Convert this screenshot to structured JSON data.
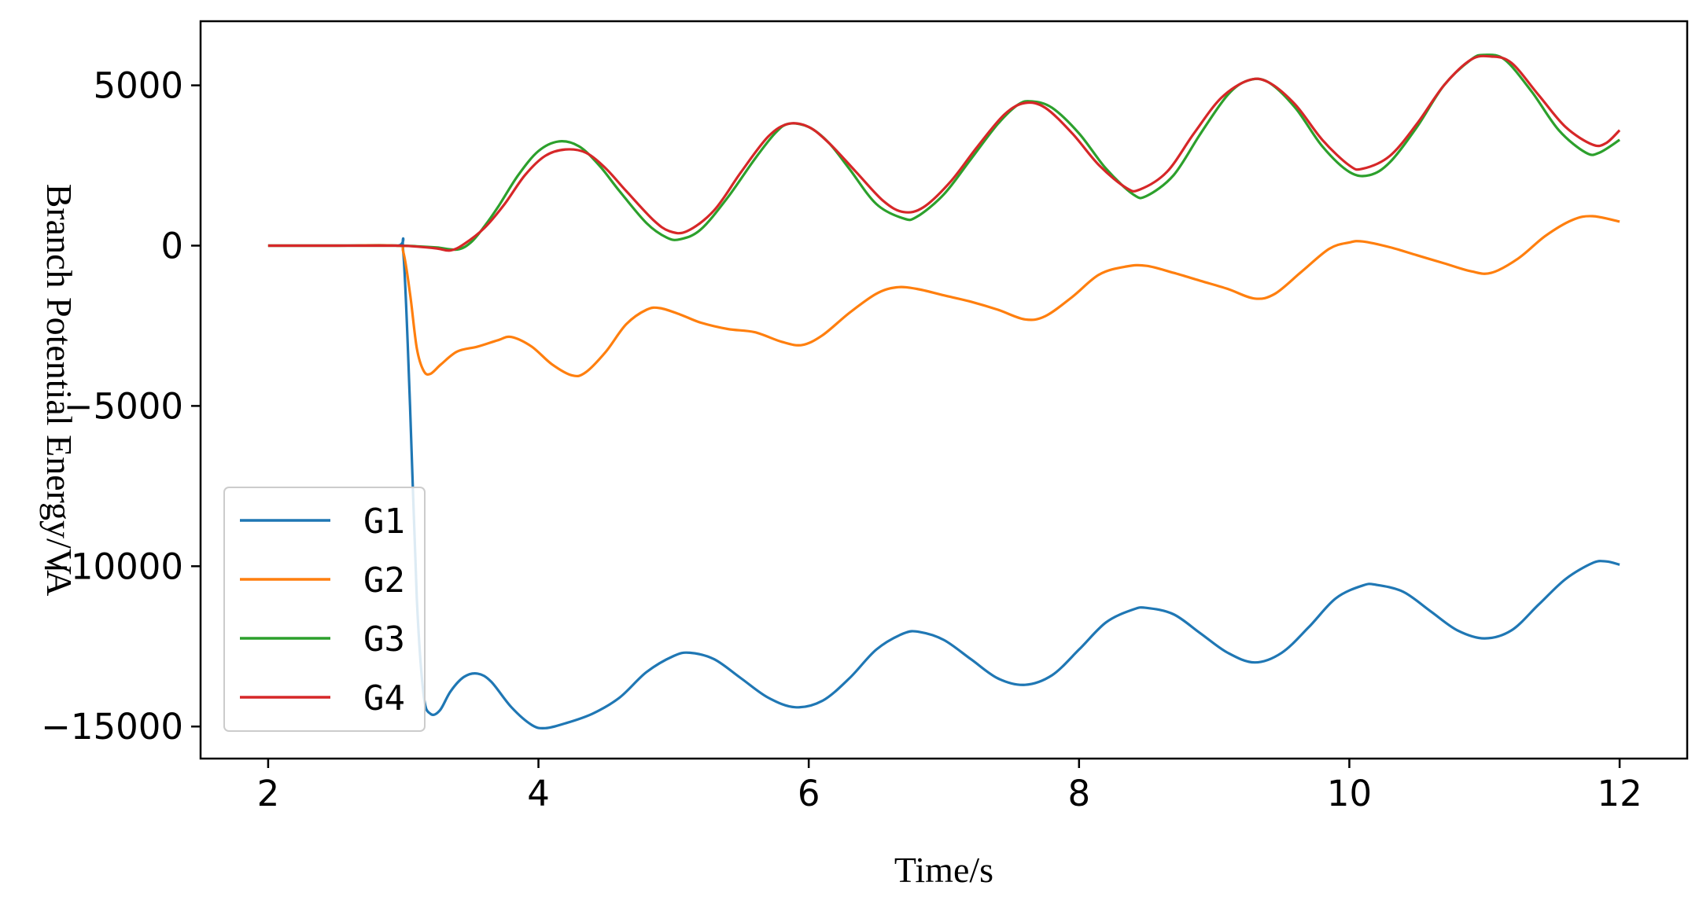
{
  "chart_data": {
    "type": "line",
    "title": "",
    "xlabel": "Time/s",
    "ylabel": "Branch Potential Energy/VA",
    "xlim": [
      1.5,
      12.5
    ],
    "ylim": [
      -16000,
      7000
    ],
    "xticks": [
      2,
      4,
      6,
      8,
      10,
      12
    ],
    "yticks": [
      5000,
      0,
      -5000,
      -10000,
      -15000
    ],
    "xtick_labels": [
      "2",
      "4",
      "6",
      "8",
      "10",
      "12"
    ],
    "ytick_labels": [
      "5000",
      "0",
      "−5000",
      "−10000",
      "−15000"
    ],
    "grid": false,
    "legend_position": "lower-left",
    "series": [
      {
        "name": "G1",
        "color": "#1f77b4",
        "points": [
          [
            2,
            0
          ],
          [
            2.5,
            0
          ],
          [
            2.95,
            0
          ],
          [
            3.0,
            -200
          ],
          [
            3.05,
            -5000
          ],
          [
            3.1,
            -11000
          ],
          [
            3.15,
            -14000
          ],
          [
            3.2,
            -14600
          ],
          [
            3.27,
            -14500
          ],
          [
            3.35,
            -13900
          ],
          [
            3.45,
            -13450
          ],
          [
            3.55,
            -13350
          ],
          [
            3.65,
            -13600
          ],
          [
            3.8,
            -14400
          ],
          [
            3.95,
            -14950
          ],
          [
            4.05,
            -15050
          ],
          [
            4.2,
            -14900
          ],
          [
            4.4,
            -14600
          ],
          [
            4.6,
            -14100
          ],
          [
            4.8,
            -13300
          ],
          [
            5.0,
            -12800
          ],
          [
            5.12,
            -12700
          ],
          [
            5.3,
            -12900
          ],
          [
            5.5,
            -13500
          ],
          [
            5.7,
            -14100
          ],
          [
            5.9,
            -14400
          ],
          [
            6.1,
            -14200
          ],
          [
            6.3,
            -13500
          ],
          [
            6.5,
            -12600
          ],
          [
            6.7,
            -12100
          ],
          [
            6.82,
            -12050
          ],
          [
            7.0,
            -12300
          ],
          [
            7.2,
            -12900
          ],
          [
            7.4,
            -13500
          ],
          [
            7.6,
            -13700
          ],
          [
            7.8,
            -13400
          ],
          [
            8.0,
            -12600
          ],
          [
            8.2,
            -11750
          ],
          [
            8.4,
            -11350
          ],
          [
            8.5,
            -11300
          ],
          [
            8.7,
            -11500
          ],
          [
            8.9,
            -12100
          ],
          [
            9.1,
            -12700
          ],
          [
            9.3,
            -13000
          ],
          [
            9.5,
            -12700
          ],
          [
            9.7,
            -11900
          ],
          [
            9.9,
            -11000
          ],
          [
            10.1,
            -10600
          ],
          [
            10.2,
            -10580
          ],
          [
            10.4,
            -10800
          ],
          [
            10.6,
            -11400
          ],
          [
            10.8,
            -12000
          ],
          [
            11.0,
            -12250
          ],
          [
            11.2,
            -12000
          ],
          [
            11.4,
            -11200
          ],
          [
            11.6,
            -10400
          ],
          [
            11.8,
            -9900
          ],
          [
            11.9,
            -9850
          ],
          [
            12.0,
            -9950
          ]
        ]
      },
      {
        "name": "G2",
        "color": "#ff7f0e",
        "points": [
          [
            2,
            0
          ],
          [
            2.5,
            0
          ],
          [
            2.95,
            0
          ],
          [
            3.0,
            -200
          ],
          [
            3.05,
            -1500
          ],
          [
            3.1,
            -3200
          ],
          [
            3.15,
            -3900
          ],
          [
            3.2,
            -4000
          ],
          [
            3.28,
            -3700
          ],
          [
            3.4,
            -3300
          ],
          [
            3.55,
            -3150
          ],
          [
            3.7,
            -2950
          ],
          [
            3.8,
            -2850
          ],
          [
            3.95,
            -3150
          ],
          [
            4.1,
            -3700
          ],
          [
            4.25,
            -4050
          ],
          [
            4.35,
            -3950
          ],
          [
            4.5,
            -3300
          ],
          [
            4.65,
            -2450
          ],
          [
            4.8,
            -2000
          ],
          [
            4.9,
            -1950
          ],
          [
            5.05,
            -2150
          ],
          [
            5.2,
            -2400
          ],
          [
            5.4,
            -2600
          ],
          [
            5.6,
            -2700
          ],
          [
            5.8,
            -3000
          ],
          [
            5.95,
            -3100
          ],
          [
            6.1,
            -2800
          ],
          [
            6.3,
            -2100
          ],
          [
            6.5,
            -1500
          ],
          [
            6.65,
            -1300
          ],
          [
            6.8,
            -1350
          ],
          [
            7.0,
            -1550
          ],
          [
            7.2,
            -1750
          ],
          [
            7.4,
            -2000
          ],
          [
            7.6,
            -2300
          ],
          [
            7.75,
            -2200
          ],
          [
            7.95,
            -1600
          ],
          [
            8.15,
            -900
          ],
          [
            8.35,
            -650
          ],
          [
            8.5,
            -630
          ],
          [
            8.7,
            -850
          ],
          [
            8.9,
            -1100
          ],
          [
            9.1,
            -1350
          ],
          [
            9.3,
            -1650
          ],
          [
            9.45,
            -1500
          ],
          [
            9.65,
            -800
          ],
          [
            9.85,
            -100
          ],
          [
            10.0,
            100
          ],
          [
            10.1,
            130
          ],
          [
            10.3,
            -50
          ],
          [
            10.5,
            -300
          ],
          [
            10.7,
            -550
          ],
          [
            10.9,
            -800
          ],
          [
            11.05,
            -850
          ],
          [
            11.25,
            -400
          ],
          [
            11.45,
            300
          ],
          [
            11.65,
            800
          ],
          [
            11.8,
            920
          ],
          [
            12.0,
            750
          ]
        ]
      },
      {
        "name": "G3",
        "color": "#2ca02c",
        "points": [
          [
            2,
            0
          ],
          [
            2.5,
            0
          ],
          [
            2.95,
            0
          ],
          [
            3.1,
            -20
          ],
          [
            3.25,
            -60
          ],
          [
            3.4,
            -120
          ],
          [
            3.5,
            100
          ],
          [
            3.6,
            600
          ],
          [
            3.7,
            1200
          ],
          [
            3.85,
            2200
          ],
          [
            4.0,
            2950
          ],
          [
            4.15,
            3250
          ],
          [
            4.3,
            3100
          ],
          [
            4.45,
            2500
          ],
          [
            4.6,
            1700
          ],
          [
            4.8,
            700
          ],
          [
            4.95,
            250
          ],
          [
            5.05,
            200
          ],
          [
            5.2,
            500
          ],
          [
            5.4,
            1500
          ],
          [
            5.6,
            2700
          ],
          [
            5.75,
            3500
          ],
          [
            5.85,
            3800
          ],
          [
            6.0,
            3700
          ],
          [
            6.15,
            3200
          ],
          [
            6.3,
            2400
          ],
          [
            6.5,
            1300
          ],
          [
            6.7,
            850
          ],
          [
            6.8,
            900
          ],
          [
            7.0,
            1600
          ],
          [
            7.2,
            2700
          ],
          [
            7.4,
            3800
          ],
          [
            7.55,
            4400
          ],
          [
            7.65,
            4500
          ],
          [
            7.8,
            4300
          ],
          [
            8.0,
            3500
          ],
          [
            8.2,
            2400
          ],
          [
            8.4,
            1600
          ],
          [
            8.5,
            1550
          ],
          [
            8.7,
            2200
          ],
          [
            8.9,
            3500
          ],
          [
            9.1,
            4700
          ],
          [
            9.25,
            5150
          ],
          [
            9.4,
            5100
          ],
          [
            9.6,
            4300
          ],
          [
            9.8,
            3100
          ],
          [
            10.0,
            2300
          ],
          [
            10.15,
            2200
          ],
          [
            10.3,
            2600
          ],
          [
            10.5,
            3700
          ],
          [
            10.7,
            5000
          ],
          [
            10.9,
            5800
          ],
          [
            11.0,
            5950
          ],
          [
            11.15,
            5800
          ],
          [
            11.35,
            4800
          ],
          [
            11.55,
            3600
          ],
          [
            11.75,
            2900
          ],
          [
            11.85,
            2900
          ],
          [
            12.0,
            3300
          ]
        ]
      },
      {
        "name": "G4",
        "color": "#d62728",
        "points": [
          [
            2,
            0
          ],
          [
            2.5,
            0
          ],
          [
            2.95,
            0
          ],
          [
            3.1,
            -30
          ],
          [
            3.25,
            -90
          ],
          [
            3.35,
            -150
          ],
          [
            3.45,
            50
          ],
          [
            3.6,
            550
          ],
          [
            3.75,
            1300
          ],
          [
            3.9,
            2200
          ],
          [
            4.05,
            2800
          ],
          [
            4.2,
            3000
          ],
          [
            4.35,
            2900
          ],
          [
            4.5,
            2400
          ],
          [
            4.65,
            1700
          ],
          [
            4.85,
            800
          ],
          [
            4.97,
            450
          ],
          [
            5.1,
            450
          ],
          [
            5.3,
            1100
          ],
          [
            5.5,
            2300
          ],
          [
            5.7,
            3400
          ],
          [
            5.85,
            3800
          ],
          [
            6.0,
            3700
          ],
          [
            6.15,
            3200
          ],
          [
            6.35,
            2300
          ],
          [
            6.55,
            1400
          ],
          [
            6.7,
            1050
          ],
          [
            6.85,
            1200
          ],
          [
            7.05,
            2000
          ],
          [
            7.25,
            3100
          ],
          [
            7.45,
            4100
          ],
          [
            7.6,
            4450
          ],
          [
            7.75,
            4300
          ],
          [
            7.95,
            3500
          ],
          [
            8.15,
            2500
          ],
          [
            8.35,
            1800
          ],
          [
            8.45,
            1750
          ],
          [
            8.65,
            2300
          ],
          [
            8.85,
            3500
          ],
          [
            9.05,
            4600
          ],
          [
            9.25,
            5150
          ],
          [
            9.4,
            5100
          ],
          [
            9.6,
            4400
          ],
          [
            9.8,
            3300
          ],
          [
            10.0,
            2500
          ],
          [
            10.1,
            2400
          ],
          [
            10.3,
            2800
          ],
          [
            10.5,
            3800
          ],
          [
            10.7,
            5000
          ],
          [
            10.9,
            5800
          ],
          [
            11.05,
            5900
          ],
          [
            11.2,
            5700
          ],
          [
            11.4,
            4700
          ],
          [
            11.6,
            3700
          ],
          [
            11.8,
            3150
          ],
          [
            11.9,
            3200
          ],
          [
            12.0,
            3600
          ]
        ]
      }
    ]
  }
}
